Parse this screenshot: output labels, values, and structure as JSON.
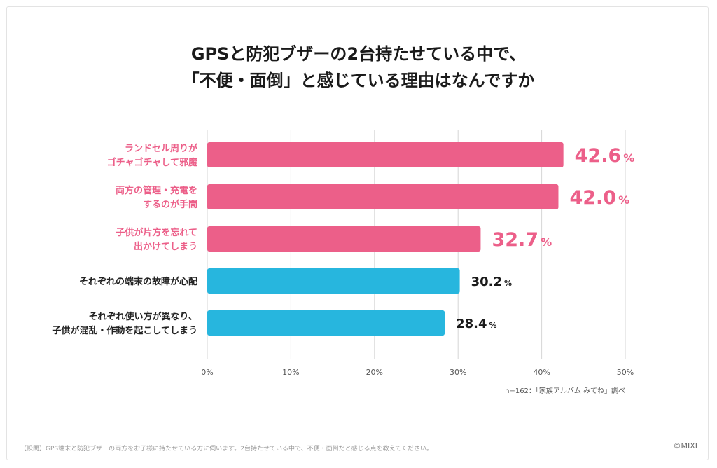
{
  "title_lines": [
    "GPSと防犯ブザーの2台持たせている中で、",
    "「不便・面倒」と感じている理由はなんですか"
  ],
  "chart_data": {
    "type": "bar",
    "orientation": "horizontal",
    "categories": [
      [
        "ランドセル周りが",
        "ゴチャゴチャして邪魔"
      ],
      [
        "両方の管理・充電を",
        "するのが手間"
      ],
      [
        "子供が片方を忘れて",
        "出かけてしまう"
      ],
      [
        "それぞれの端末の故障が心配"
      ],
      [
        "それぞれ使い方が異なり、",
        "子供が混乱・作動を起こしてしまう"
      ]
    ],
    "values": [
      42.6,
      42.0,
      32.7,
      30.2,
      28.4
    ],
    "value_labels": [
      "42.6",
      "42.0",
      "32.7",
      "30.2",
      "28.4"
    ],
    "unit": "%",
    "highlight": [
      true,
      true,
      true,
      false,
      false
    ],
    "colors": {
      "highlight": "#ec5f89",
      "normal": "#27b6de"
    },
    "xlim": [
      0,
      50
    ],
    "xticks": [
      "0%",
      "10%",
      "20%",
      "30%",
      "40%",
      "50%"
    ],
    "grid": true
  },
  "note": "n=162：「家族アルバム みてね」調べ",
  "footer": "【設問】GPS端末と防犯ブザーの両方をお子様に持たせている方に伺います。2台持たせている中で、不便・面倒だと感じる点を教えてください。",
  "copyright": "©MIXI"
}
